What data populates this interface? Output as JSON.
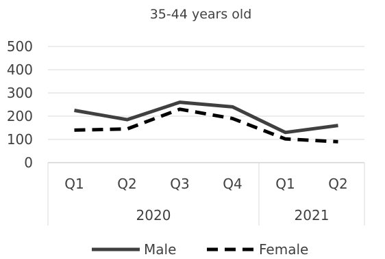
{
  "chart_data": {
    "type": "line",
    "title": "35-44 years old",
    "xlabel": "",
    "ylabel": "",
    "ylim": [
      0,
      500
    ],
    "yticks": [
      0,
      100,
      200,
      300,
      400,
      500
    ],
    "categories": [
      "Q1",
      "Q2",
      "Q3",
      "Q4",
      "Q1",
      "Q2"
    ],
    "groups": [
      {
        "label": "2020",
        "count": 4
      },
      {
        "label": "2021",
        "count": 2
      }
    ],
    "grid": true,
    "legend": "bottom",
    "series": [
      {
        "name": "Male",
        "values": [
          225,
          185,
          260,
          240,
          130,
          160
        ],
        "style": "solid",
        "color": "#404040"
      },
      {
        "name": "Female",
        "values": [
          140,
          145,
          230,
          190,
          102,
          90
        ],
        "style": "dashed",
        "color": "#000000"
      }
    ]
  }
}
